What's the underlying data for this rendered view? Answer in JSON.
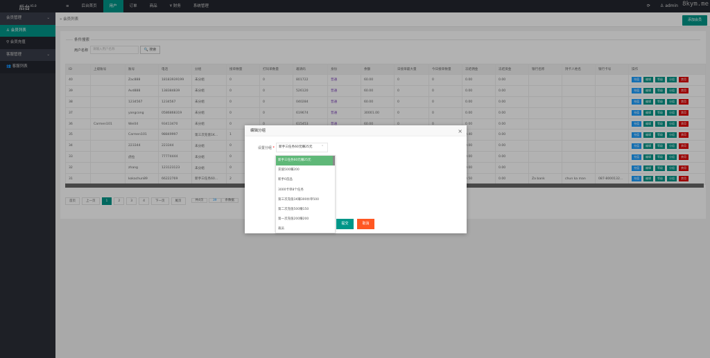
{
  "app": {
    "title": "后台",
    "version": "V1.0",
    "watermark": "8kym.me"
  },
  "nav": {
    "menu_icon": "≡",
    "items": [
      "后台首页",
      "用户",
      "订单",
      "商品",
      "¥ 财务",
      "系统管理"
    ],
    "active": 1,
    "user": "admin",
    "refresh_icon": "⟳"
  },
  "sidebar": {
    "groups": [
      {
        "label": "会员管理",
        "items": [
          "会员列表",
          "会员充值"
        ]
      },
      {
        "label": "客服管理",
        "items": [
          "客服列表"
        ]
      }
    ]
  },
  "breadcrumb": "会员列表",
  "add_button": "添加会员",
  "search": {
    "legend": "条件搜索",
    "label": "用户名称",
    "placeholder": "请输入用户名称",
    "button": "搜索"
  },
  "table": {
    "headers": [
      "ID",
      "上级账号",
      "账号",
      "电话",
      "分组",
      "接单数量",
      "打码单数量",
      "邀请码",
      "身份",
      "余额",
      "日接单最大量",
      "今日接单数量",
      "冻结佣金",
      "冻结资金",
      "银行名称",
      "持卡人姓名",
      "银行卡号",
      "操作"
    ],
    "rows": [
      [
        "40",
        "",
        "Zac888",
        "18183939199",
        "未分组",
        "0",
        "0",
        "801722",
        "普通",
        "60.00",
        "0",
        "0",
        "0.00",
        "0.00",
        "",
        "",
        ""
      ],
      [
        "39",
        "",
        "Avd888",
        "138384839",
        "未分组",
        "0",
        "0",
        "526120",
        "普通",
        "60.00",
        "0",
        "0",
        "0.00",
        "0.00",
        "",
        "",
        ""
      ],
      [
        "38",
        "",
        "1234567",
        "1234567",
        "未分组",
        "0",
        "0",
        "040284",
        "普通",
        "60.00",
        "0",
        "0",
        "0.00",
        "0.00",
        "",
        "",
        ""
      ],
      [
        "37",
        "",
        "yangcong",
        "0586868319",
        "未分组",
        "0",
        "0",
        "619674",
        "普通",
        "30001.00",
        "0",
        "0",
        "0.00",
        "0.00",
        "",
        "",
        ""
      ],
      [
        "36",
        "Carmen101",
        "Wei04",
        "93413470",
        "未分组",
        "0",
        "0",
        "615453",
        "普通",
        "60.00",
        "0",
        "0",
        "0.00",
        "0.00",
        "",
        "",
        ""
      ],
      [
        "35",
        "",
        "Carmen101",
        "98849997",
        "第三次充值1K...",
        "1",
        "",
        "",
        "",
        "",
        "",
        "",
        "0.40",
        "0.00",
        "",
        "",
        ""
      ],
      [
        "34",
        "",
        "223344",
        "223344",
        "未分组",
        "0",
        "",
        "",
        "",
        "",
        "",
        "",
        "0.00",
        "0.00",
        "",
        "",
        ""
      ],
      [
        "33",
        "",
        "虎拉",
        "77774444",
        "未分组",
        "0",
        "",
        "",
        "",
        "",
        "",
        "",
        "0.00",
        "0.00",
        "",
        "",
        ""
      ],
      [
        "32",
        "",
        "zhang",
        "123123123",
        "未分组",
        "0",
        "",
        "",
        "",
        "",
        "",
        "",
        "0.00",
        "0.00",
        "",
        "",
        ""
      ],
      [
        "31",
        "",
        "kokachun89",
        "66222769",
        "新手三任务60...",
        "2",
        "",
        "",
        "",
        "",
        "",
        "",
        "0.50",
        "0.00",
        "Za bank",
        "chun ka man",
        "087-8000132..."
      ]
    ],
    "actions": [
      {
        "label": "充值",
        "color": "#1e9fff"
      },
      {
        "label": "编辑",
        "color": "#009688"
      },
      {
        "label": "等级",
        "color": "#009688"
      },
      {
        "label": "分组",
        "color": "#009688"
      },
      {
        "label": "禁用",
        "color": "#e00000"
      }
    ]
  },
  "pager": {
    "first": "首页",
    "prev": "上一页",
    "pages": [
      "1",
      "2",
      "3",
      "4"
    ],
    "current": "1",
    "next": "下一页",
    "last": "尾页",
    "total_pages": "共4页",
    "total_count": "39",
    "count_suffix": "条数据"
  },
  "dialog": {
    "title": "编辑分组",
    "close": "×",
    "label": "设置分组",
    "required": "*",
    "selected": "新手三任务60元赚25元",
    "options": [
      "新手三任务60元赚25元",
      "充值500赚200",
      "新手0首品",
      "3000卡单8个任务",
      "第三次充值1K赚300补单500",
      "第二次充值500赚150",
      "第一次充值200赚200",
      "裁员"
    ],
    "submit": "提交",
    "cancel": "取消"
  }
}
